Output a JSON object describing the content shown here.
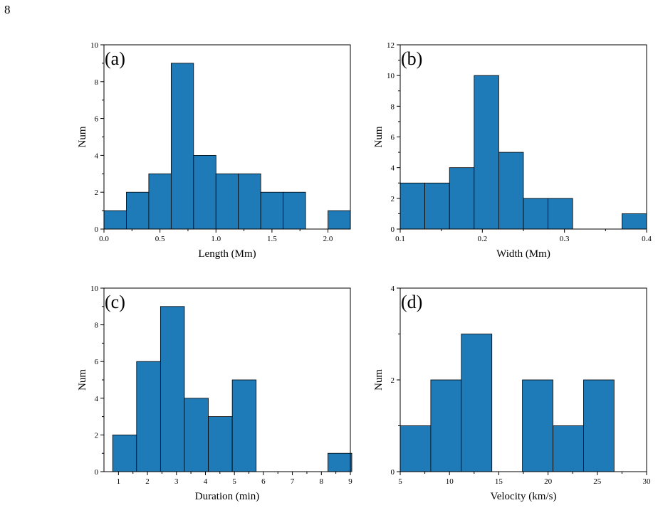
{
  "page_number": "8",
  "style": {
    "bar_fill": "#1f7bb8",
    "bar_stroke": "#000000"
  },
  "chart_data": [
    {
      "type": "bar",
      "panel_label": "(a)",
      "xlabel": "Length (Mm)",
      "ylabel": "Num",
      "xlim": [
        0,
        2.2
      ],
      "ylim": [
        0,
        10
      ],
      "xticks": [
        0.0,
        0.5,
        1.0,
        1.5,
        2.0
      ],
      "xtick_labels": [
        "0.0",
        "0.5",
        "1.0",
        "1.5",
        "2.0"
      ],
      "yticks": [
        0,
        2,
        4,
        6,
        8,
        10
      ],
      "ytick_labels": [
        "0",
        "2",
        "4",
        "6",
        "8",
        "10"
      ],
      "bins": [
        {
          "x0": 0.0,
          "x1": 0.2,
          "value": 1
        },
        {
          "x0": 0.2,
          "x1": 0.4,
          "value": 2
        },
        {
          "x0": 0.4,
          "x1": 0.6,
          "value": 3
        },
        {
          "x0": 0.6,
          "x1": 0.8,
          "value": 9
        },
        {
          "x0": 0.8,
          "x1": 1.0,
          "value": 4
        },
        {
          "x0": 1.0,
          "x1": 1.2,
          "value": 3
        },
        {
          "x0": 1.2,
          "x1": 1.4,
          "value": 3
        },
        {
          "x0": 1.4,
          "x1": 1.6,
          "value": 2
        },
        {
          "x0": 1.6,
          "x1": 1.8,
          "value": 2
        },
        {
          "x0": 2.0,
          "x1": 2.2,
          "value": 1
        }
      ]
    },
    {
      "type": "bar",
      "panel_label": "(b)",
      "xlabel": "Width (Mm)",
      "ylabel": "Num",
      "xlim": [
        0.1,
        0.4
      ],
      "ylim": [
        0,
        12
      ],
      "xticks": [
        0.1,
        0.2,
        0.3,
        0.4
      ],
      "xtick_labels": [
        "0.1",
        "0.2",
        "0.3",
        "0.4"
      ],
      "yticks": [
        0,
        2,
        4,
        6,
        8,
        10,
        12
      ],
      "ytick_labels": [
        "0",
        "2",
        "4",
        "6",
        "8",
        "10",
        "12"
      ],
      "bins": [
        {
          "x0": 0.1,
          "x1": 0.13,
          "value": 3
        },
        {
          "x0": 0.13,
          "x1": 0.16,
          "value": 3
        },
        {
          "x0": 0.16,
          "x1": 0.19,
          "value": 4
        },
        {
          "x0": 0.19,
          "x1": 0.22,
          "value": 10
        },
        {
          "x0": 0.22,
          "x1": 0.25,
          "value": 5
        },
        {
          "x0": 0.25,
          "x1": 0.28,
          "value": 2
        },
        {
          "x0": 0.28,
          "x1": 0.31,
          "value": 2
        },
        {
          "x0": 0.37,
          "x1": 0.4,
          "value": 1
        }
      ]
    },
    {
      "type": "bar",
      "panel_label": "(c)",
      "xlabel": "Duration (min)",
      "ylabel": "Num",
      "xlim": [
        0.5,
        9
      ],
      "ylim": [
        0,
        10
      ],
      "xticks": [
        1,
        2,
        3,
        4,
        5,
        6,
        7,
        8,
        9
      ],
      "xtick_labels": [
        "1",
        "2",
        "3",
        "4",
        "5",
        "6",
        "7",
        "8",
        "9"
      ],
      "yticks": [
        0,
        2,
        4,
        6,
        8,
        10
      ],
      "ytick_labels": [
        "0",
        "2",
        "4",
        "6",
        "8",
        "10"
      ],
      "bins": [
        {
          "x0": 0.8,
          "x1": 1.625,
          "value": 2
        },
        {
          "x0": 1.625,
          "x1": 2.45,
          "value": 6
        },
        {
          "x0": 2.45,
          "x1": 3.275,
          "value": 9
        },
        {
          "x0": 3.275,
          "x1": 4.1,
          "value": 4
        },
        {
          "x0": 4.1,
          "x1": 4.925,
          "value": 3
        },
        {
          "x0": 4.925,
          "x1": 5.75,
          "value": 5
        },
        {
          "x0": 8.225,
          "x1": 9.05,
          "value": 1
        }
      ]
    },
    {
      "type": "bar",
      "panel_label": "(d)",
      "xlabel": "Velocity (km/s)",
      "ylabel": "Num",
      "xlim": [
        5,
        30
      ],
      "ylim": [
        0,
        4
      ],
      "xticks": [
        5,
        10,
        15,
        20,
        25,
        30
      ],
      "xtick_labels": [
        "5",
        "10",
        "15",
        "20",
        "25",
        "30"
      ],
      "yticks": [
        0,
        2,
        4
      ],
      "ytick_labels": [
        "0",
        "2",
        "4"
      ],
      "bins": [
        {
          "x0": 5.0,
          "x1": 8.1,
          "value": 1
        },
        {
          "x0": 8.1,
          "x1": 11.2,
          "value": 2
        },
        {
          "x0": 11.2,
          "x1": 14.3,
          "value": 3
        },
        {
          "x0": 17.4,
          "x1": 20.5,
          "value": 2
        },
        {
          "x0": 20.5,
          "x1": 23.6,
          "value": 1
        },
        {
          "x0": 23.6,
          "x1": 26.7,
          "value": 2
        }
      ]
    }
  ]
}
